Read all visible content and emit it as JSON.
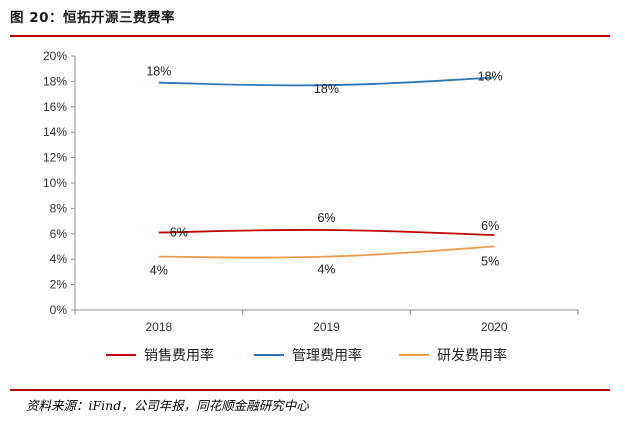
{
  "figure": {
    "title": "图 20：恒拓开源三费费率",
    "source": "资料来源：iFind，公司年报，同花顺金融研究中心"
  },
  "chart_data": {
    "type": "line",
    "title": "恒拓开源三费费率",
    "categories": [
      "2018",
      "2019",
      "2020"
    ],
    "ylim": [
      0,
      20
    ],
    "yticks": [
      "0%",
      "2%",
      "4%",
      "6%",
      "8%",
      "10%",
      "12%",
      "14%",
      "16%",
      "18%",
      "20%"
    ],
    "legend_position": "bottom",
    "series": [
      {
        "name": "销售费用率",
        "color": "#c00000",
        "values": [
          6.1,
          6.3,
          5.9
        ],
        "labels": [
          "6%",
          "6%",
          "6%"
        ]
      },
      {
        "name": "管理费用率",
        "color": "#2e75b6",
        "values": [
          17.9,
          17.7,
          18.3
        ],
        "labels": [
          "18%",
          "18%",
          "18%"
        ]
      },
      {
        "name": "研发费用率",
        "color": "#ed9b4c",
        "values": [
          4.2,
          4.2,
          5.0
        ],
        "labels": [
          "4%",
          "4%",
          "5%"
        ]
      }
    ]
  }
}
